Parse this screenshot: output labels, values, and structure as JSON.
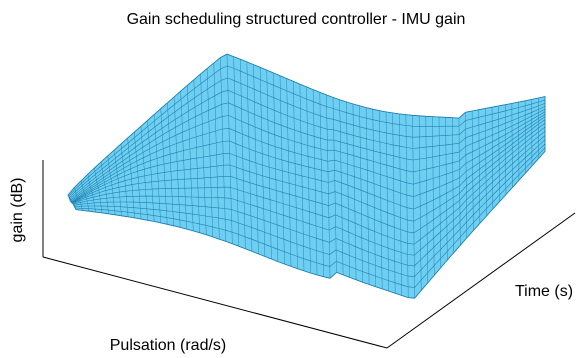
{
  "chart_data": {
    "type": "surface",
    "title": "Gain scheduling structured controller - IMU gain",
    "xlabel": "Pulsation (rad/s)",
    "ylabel": "Time (s)",
    "zlabel": "gain (dB)",
    "grid": false,
    "ticks_shown": false,
    "surface_color": "#6ecff2",
    "mesh_color": "#1f7fae",
    "axis_color": "#000000"
  }
}
